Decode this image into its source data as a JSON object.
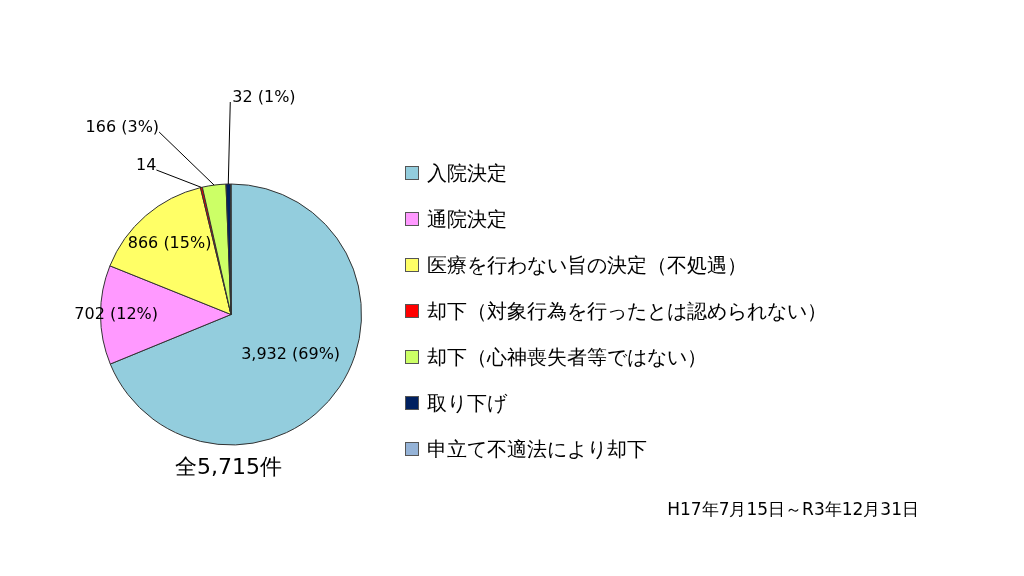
{
  "chart_data": {
    "type": "pie",
    "categories": [
      "入院決定",
      "通院決定",
      "医療を行わない旨の決定（不処遇）",
      "却下（対象行為を行ったとは認められない）",
      "却下（心神喪失者等ではない）",
      "取り下げ",
      "申立て不適法により却下"
    ],
    "values": [
      3932,
      702,
      866,
      14,
      166,
      32,
      3
    ],
    "value_labels": [
      "3,932 (69%)",
      "702 (12%)",
      "866 (15%)",
      "14",
      "166 (3%)",
      "32 (1%)",
      null
    ],
    "colors": [
      "#93cddd",
      "#ff99ff",
      "#ffff66",
      "#ff0000",
      "#ccff66",
      "#002060",
      "#95b3d7"
    ],
    "legend": "right",
    "annotations": [
      "全5,715件",
      "H17年7月15日～R3年12月31日"
    ]
  }
}
